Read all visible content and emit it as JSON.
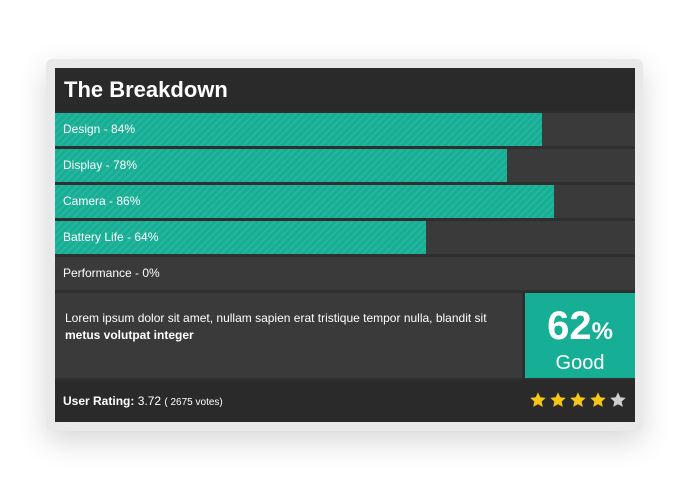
{
  "breakdown": {
    "title": "The Breakdown",
    "bars": [
      {
        "label": "Design - 84%",
        "value": 84
      },
      {
        "label": "Display - 78%",
        "value": 78
      },
      {
        "label": "Camera - 86%",
        "value": 86
      },
      {
        "label": "Battery Life - 64%",
        "value": 64
      },
      {
        "label": "Performance - 0%",
        "value": 0
      }
    ]
  },
  "summary": {
    "text": "Lorem ipsum dolor sit amet, nullam sapien erat tristique tempor nulla, blandit sit",
    "bold_text": "metus volutpat integer"
  },
  "score": {
    "value": "62",
    "unit": "%",
    "label": "Good"
  },
  "user_rating": {
    "label": "User Rating:",
    "value": "3.72",
    "votes": "( 2675 votes)",
    "stars_filled": 4,
    "stars_total": 5
  },
  "colors": {
    "accent": "#16ae94",
    "star_filled": "#f5c518",
    "star_empty": "#cfcfcf"
  }
}
